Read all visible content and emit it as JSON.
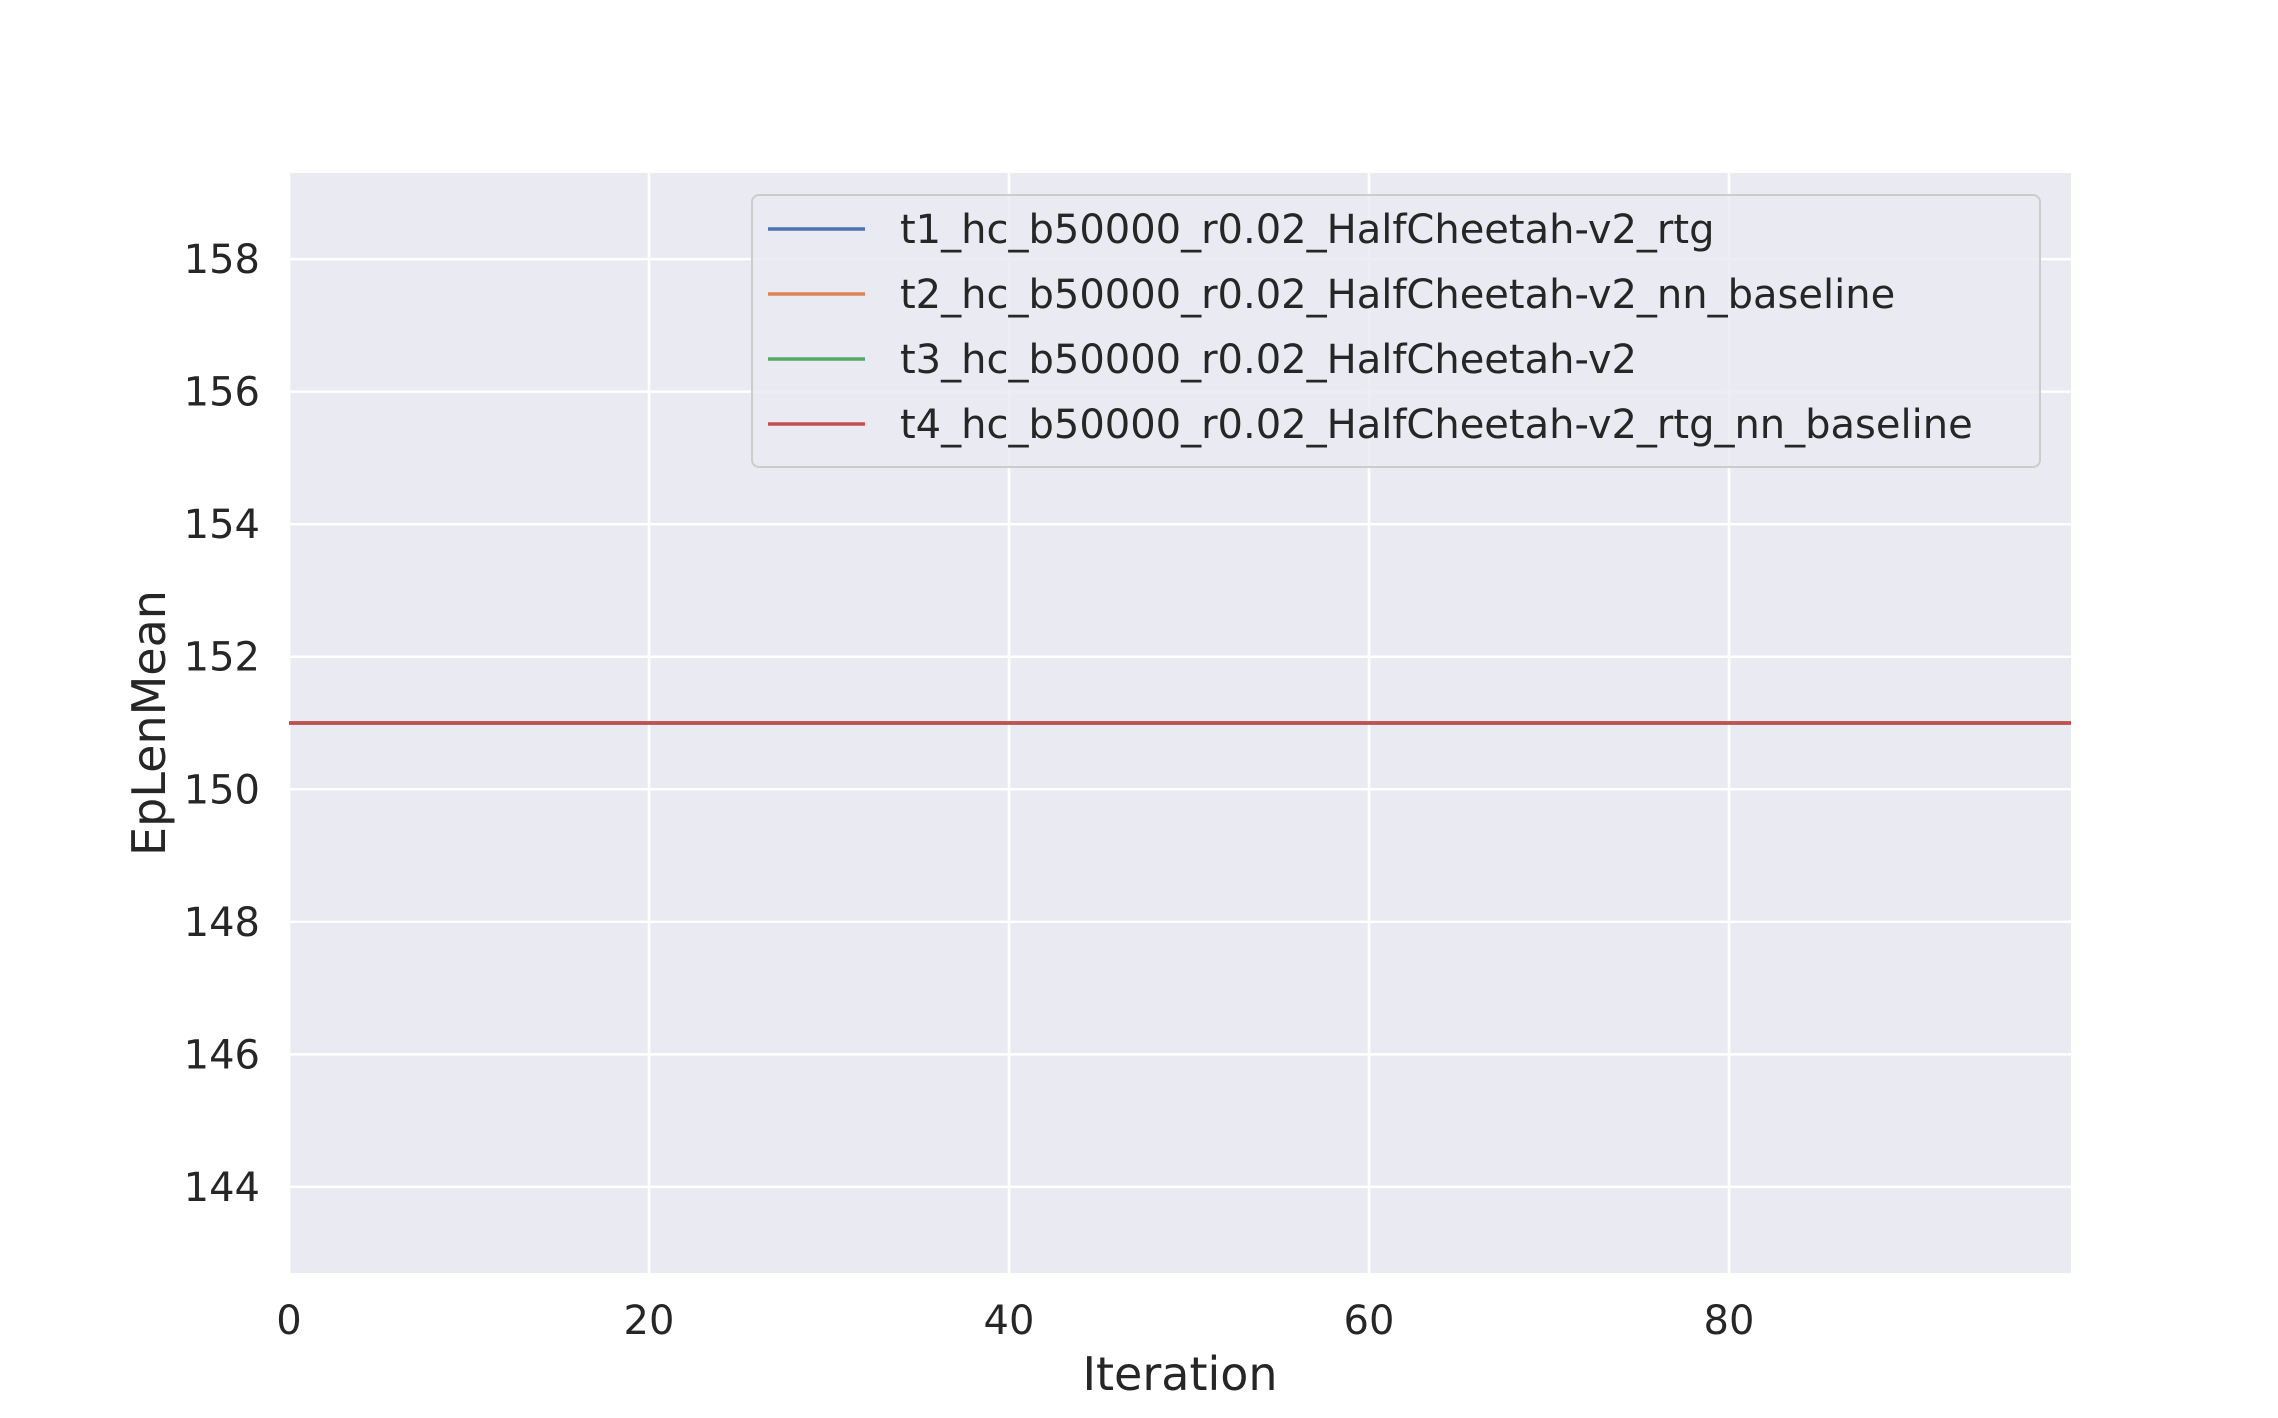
{
  "chart_data": {
    "type": "line",
    "title": "",
    "xlabel": "Iteration",
    "ylabel": "EpLenMean",
    "xlim": [
      0,
      99
    ],
    "ylim": [
      142.7,
      159.3
    ],
    "xticks": [
      0,
      20,
      40,
      60,
      80
    ],
    "yticks": [
      144,
      146,
      148,
      150,
      152,
      154,
      156,
      158
    ],
    "grid": true,
    "legend_position": "top-right",
    "series": [
      {
        "name": "t1_hc_b50000_r0.02_HalfCheetah-v2_rtg",
        "color": "#4c72b0",
        "x": [
          0,
          99
        ],
        "y": [
          151,
          151
        ]
      },
      {
        "name": "t2_hc_b50000_r0.02_HalfCheetah-v2_nn_baseline",
        "color": "#dd8452",
        "x": [
          0,
          99
        ],
        "y": [
          151,
          151
        ]
      },
      {
        "name": "t3_hc_b50000_r0.02_HalfCheetah-v2",
        "color": "#55a868",
        "x": [
          0,
          99
        ],
        "y": [
          151,
          151
        ]
      },
      {
        "name": "t4_hc_b50000_r0.02_HalfCheetah-v2_rtg_nn_baseline",
        "color": "#c44e52",
        "x": [
          0,
          99
        ],
        "y": [
          151,
          151
        ]
      }
    ],
    "colors": {
      "plot_background": "#eaeaf2",
      "grid": "#ffffff",
      "text": "#262626"
    }
  }
}
